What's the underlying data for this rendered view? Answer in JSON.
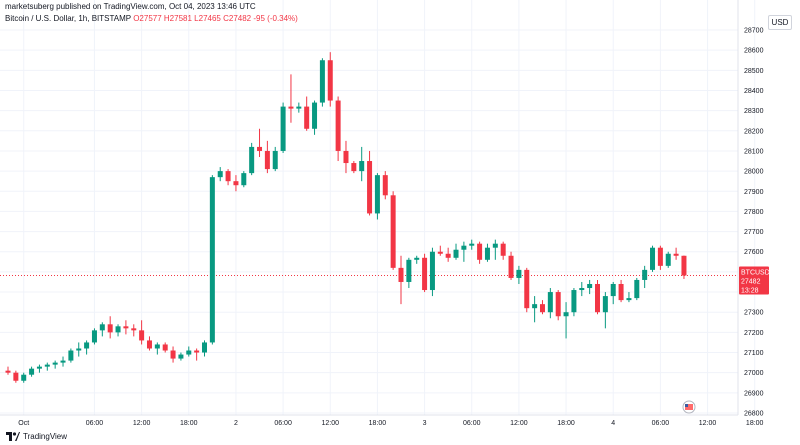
{
  "header": {
    "publisher": "marketsuberg published on TradingView.com, Oct 04, 2023 13:46 UTC",
    "symbol": "Bitcoin / U.S. Dollar, 1h, BITSTAMP",
    "ohlc_o": "O27577",
    "ohlc_h": "H27581",
    "ohlc_l": "L27465",
    "ohlc_c": "C27482",
    "ohlc_chg": "-95 (-0.34%)"
  },
  "currency": "USD",
  "price_tag": {
    "ticker": "BTCUSD",
    "price": "27482",
    "countdown": "13:28"
  },
  "footer": {
    "brand": "TradingView"
  },
  "colors": {
    "up": "#089981",
    "down": "#f23645",
    "grid": "#f0f3fa",
    "axis_text": "#131722",
    "price_line": "#f23645"
  },
  "icons": [
    "tradingview-logo-icon",
    "flag-icon"
  ],
  "chart_data": {
    "type": "candlestick",
    "title": "Bitcoin / U.S. Dollar, 1h, BITSTAMP",
    "ylim": [
      26800,
      28700
    ],
    "grid": true,
    "y_ticks": [
      28700,
      28600,
      28500,
      28400,
      28300,
      28200,
      28100,
      28000,
      27900,
      27800,
      27700,
      27600,
      27500,
      27400,
      27300,
      27200,
      27100,
      27000,
      26900,
      26800
    ],
    "x_ticks": [
      {
        "label": "Oct",
        "bar": 2
      },
      {
        "label": "06:00",
        "bar": 11
      },
      {
        "label": "12:00",
        "bar": 17
      },
      {
        "label": "18:00",
        "bar": 23
      },
      {
        "label": "2",
        "bar": 29
      },
      {
        "label": "06:00",
        "bar": 35
      },
      {
        "label": "12:00",
        "bar": 41
      },
      {
        "label": "18:00",
        "bar": 47
      },
      {
        "label": "3",
        "bar": 53
      },
      {
        "label": "06:00",
        "bar": 59
      },
      {
        "label": "12:00",
        "bar": 65
      },
      {
        "label": "18:00",
        "bar": 71
      },
      {
        "label": "4",
        "bar": 77
      },
      {
        "label": "06:00",
        "bar": 83
      },
      {
        "label": "12:00",
        "bar": 89
      },
      {
        "label": "18:00",
        "bar": 95
      }
    ],
    "last_price": 27482,
    "ohlc": [
      [
        27010,
        27030,
        26990,
        27000
      ],
      [
        27000,
        27010,
        26950,
        26960
      ],
      [
        26960,
        27000,
        26950,
        26990
      ],
      [
        26990,
        27030,
        26980,
        27020
      ],
      [
        27020,
        27040,
        27000,
        27030
      ],
      [
        27030,
        27050,
        27010,
        27040
      ],
      [
        27040,
        27060,
        27020,
        27050
      ],
      [
        27050,
        27080,
        27030,
        27060
      ],
      [
        27060,
        27120,
        27050,
        27110
      ],
      [
        27110,
        27150,
        27080,
        27120
      ],
      [
        27120,
        27160,
        27090,
        27150
      ],
      [
        27150,
        27220,
        27140,
        27210
      ],
      [
        27210,
        27250,
        27180,
        27240
      ],
      [
        27240,
        27280,
        27170,
        27200
      ],
      [
        27200,
        27240,
        27180,
        27230
      ],
      [
        27230,
        27260,
        27190,
        27220
      ],
      [
        27220,
        27240,
        27180,
        27210
      ],
      [
        27210,
        27260,
        27140,
        27160
      ],
      [
        27160,
        27180,
        27110,
        27120
      ],
      [
        27120,
        27150,
        27090,
        27140
      ],
      [
        27140,
        27150,
        27100,
        27110
      ],
      [
        27110,
        27130,
        27050,
        27070
      ],
      [
        27070,
        27100,
        27060,
        27090
      ],
      [
        27090,
        27130,
        27080,
        27110
      ],
      [
        27110,
        27120,
        27060,
        27100
      ],
      [
        27100,
        27160,
        27080,
        27150
      ],
      [
        27150,
        27980,
        27140,
        27970
      ],
      [
        27970,
        28020,
        27950,
        28000
      ],
      [
        28000,
        28010,
        27930,
        27950
      ],
      [
        27950,
        27980,
        27900,
        27930
      ],
      [
        27930,
        28000,
        27920,
        27990
      ],
      [
        27990,
        28140,
        27980,
        28120
      ],
      [
        28120,
        28210,
        28070,
        28100
      ],
      [
        28100,
        28150,
        27990,
        28010
      ],
      [
        28010,
        28120,
        28000,
        28100
      ],
      [
        28100,
        28340,
        28090,
        28320
      ],
      [
        28320,
        28480,
        28240,
        28310
      ],
      [
        28310,
        28340,
        28290,
        28320
      ],
      [
        28320,
        28370,
        28200,
        28210
      ],
      [
        28210,
        28350,
        28180,
        28340
      ],
      [
        28340,
        28560,
        28320,
        28550
      ],
      [
        28550,
        28590,
        28320,
        28350
      ],
      [
        28350,
        28370,
        28050,
        28100
      ],
      [
        28100,
        28150,
        27990,
        28040
      ],
      [
        28040,
        28050,
        27990,
        28000
      ],
      [
        28000,
        28120,
        27950,
        28050
      ],
      [
        28050,
        28100,
        27780,
        27790
      ],
      [
        27790,
        27990,
        27760,
        27980
      ],
      [
        27980,
        28000,
        27860,
        27880
      ],
      [
        27880,
        27900,
        27510,
        27520
      ],
      [
        27520,
        27580,
        27340,
        27450
      ],
      [
        27450,
        27570,
        27420,
        27560
      ],
      [
        27560,
        27580,
        27540,
        27570
      ],
      [
        27570,
        27590,
        27400,
        27410
      ],
      [
        27410,
        27620,
        27380,
        27600
      ],
      [
        27600,
        27630,
        27580,
        27590
      ],
      [
        27590,
        27620,
        27550,
        27570
      ],
      [
        27570,
        27640,
        27560,
        27610
      ],
      [
        27610,
        27650,
        27550,
        27630
      ],
      [
        27630,
        27660,
        27610,
        27640
      ],
      [
        27640,
        27650,
        27540,
        27560
      ],
      [
        27560,
        27640,
        27550,
        27620
      ],
      [
        27620,
        27660,
        27560,
        27640
      ],
      [
        27640,
        27650,
        27560,
        27580
      ],
      [
        27580,
        27600,
        27460,
        27470
      ],
      [
        27470,
        27530,
        27440,
        27510
      ],
      [
        27510,
        27520,
        27300,
        27320
      ],
      [
        27320,
        27380,
        27250,
        27340
      ],
      [
        27340,
        27360,
        27290,
        27300
      ],
      [
        27300,
        27420,
        27270,
        27400
      ],
      [
        27400,
        27410,
        27260,
        27280
      ],
      [
        27280,
        27350,
        27170,
        27300
      ],
      [
        27300,
        27420,
        27280,
        27410
      ],
      [
        27410,
        27450,
        27380,
        27420
      ],
      [
        27420,
        27460,
        27390,
        27440
      ],
      [
        27440,
        27460,
        27290,
        27300
      ],
      [
        27300,
        27400,
        27220,
        27380
      ],
      [
        27380,
        27450,
        27340,
        27440
      ],
      [
        27440,
        27460,
        27350,
        27360
      ],
      [
        27360,
        27400,
        27350,
        27370
      ],
      [
        27370,
        27470,
        27360,
        27460
      ],
      [
        27460,
        27530,
        27420,
        27510
      ],
      [
        27510,
        27630,
        27500,
        27620
      ],
      [
        27620,
        27630,
        27510,
        27530
      ],
      [
        27530,
        27600,
        27520,
        27590
      ],
      [
        27590,
        27620,
        27560,
        27580
      ],
      [
        27580,
        27581,
        27465,
        27482
      ]
    ]
  }
}
